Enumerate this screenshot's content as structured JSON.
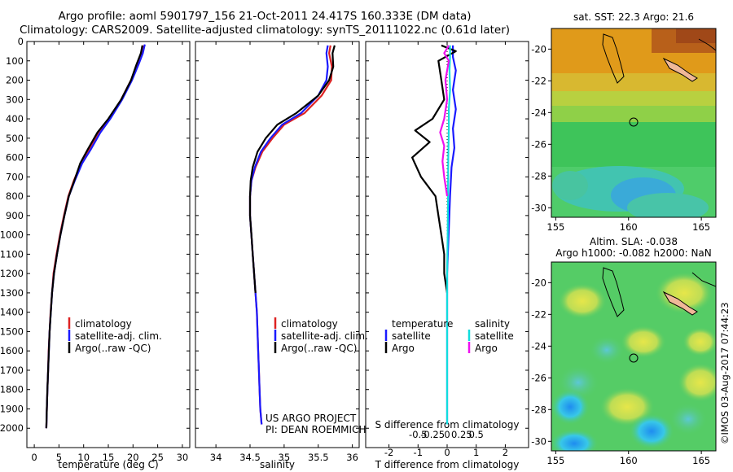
{
  "header": {
    "line1": "Argo profile: aoml 5901797_156 21-Oct-2011 24.417S 160.333E (DM data)",
    "line2": "Climatology: CARS2009. Satellite-adjusted climatology: synTS_20111022.nc (0.61d later)"
  },
  "colors": {
    "climatology": "#dd2222",
    "satellite": "#1a1aff",
    "argo": "#000000",
    "argo_salinity_diff": "#ee11ee",
    "satellite_salinity_diff": "#11dddd"
  },
  "legend": {
    "climatology": "climatology",
    "satellite_adj": "satellite-adj. clim.",
    "argo": "Argo(..raw -QC)",
    "temperature": "temperature",
    "salinity": "salinity",
    "satellite": "satellite",
    "argo_short": "Argo"
  },
  "project": {
    "line1": "US ARGO PROJECT",
    "line2": "PI: DEAN ROEMMICH"
  },
  "side": {
    "sst_title": "sat. SST: 22.3 Argo: 21.6",
    "sla_title1": "Altim. SLA: -0.038",
    "sla_title2": "Argo h1000: -0.082 h2000: NaN",
    "credit": "©IMOS 03-Aug-2017 07:44:23"
  },
  "chart_data": [
    {
      "type": "line",
      "panel": "temperature",
      "xlabel": "temperature (deg C)",
      "ylabel": "",
      "xlim": [
        -1.5,
        31.5
      ],
      "ylim": [
        2100,
        0
      ],
      "xticks": [
        0,
        5,
        10,
        15,
        20,
        25,
        30
      ],
      "yticks": [
        0,
        100,
        200,
        300,
        400,
        500,
        600,
        700,
        800,
        900,
        1000,
        1100,
        1200,
        1300,
        1400,
        1500,
        1600,
        1700,
        1800,
        1900,
        2000
      ],
      "legend_placement": "lower-left",
      "series": [
        {
          "name": "climatology",
          "color_key": "climatology",
          "points": [
            [
              22.1,
              20
            ],
            [
              21.7,
              60
            ],
            [
              20.8,
              120
            ],
            [
              19.6,
              200
            ],
            [
              17.6,
              300
            ],
            [
              15.2,
              400
            ],
            [
              13.0,
              470
            ],
            [
              11.0,
              560
            ],
            [
              9.5,
              630
            ],
            [
              8.0,
              720
            ],
            [
              6.9,
              800
            ],
            [
              6.0,
              900
            ],
            [
              5.2,
              1000
            ],
            [
              4.5,
              1100
            ],
            [
              3.9,
              1200
            ],
            [
              3.6,
              1300
            ],
            [
              3.3,
              1400
            ],
            [
              3.1,
              1500
            ],
            [
              2.9,
              1600
            ],
            [
              2.8,
              1700
            ],
            [
              2.65,
              1800
            ],
            [
              2.55,
              1900
            ],
            [
              2.45,
              2000
            ]
          ]
        },
        {
          "name": "satellite-adj. clim.",
          "color_key": "satellite",
          "points": [
            [
              22.4,
              15
            ],
            [
              22.0,
              60
            ],
            [
              21.1,
              120
            ],
            [
              19.8,
              200
            ],
            [
              17.8,
              300
            ],
            [
              15.4,
              400
            ],
            [
              13.4,
              470
            ],
            [
              11.4,
              560
            ],
            [
              9.7,
              630
            ],
            [
              8.2,
              720
            ],
            [
              7.0,
              800
            ],
            [
              6.1,
              900
            ],
            [
              5.3,
              1000
            ],
            [
              4.6,
              1100
            ],
            [
              4.0,
              1200
            ],
            [
              3.6,
              1300
            ],
            [
              3.35,
              1400
            ],
            [
              3.1,
              1500
            ],
            [
              2.95,
              1600
            ],
            [
              2.8,
              1700
            ],
            [
              2.65,
              1800
            ],
            [
              2.55,
              1900
            ],
            [
              2.45,
              2000
            ]
          ]
        },
        {
          "name": "Argo(..raw -QC)",
          "color_key": "argo",
          "points": [
            [
              21.9,
              20
            ],
            [
              21.6,
              60
            ],
            [
              20.7,
              120
            ],
            [
              19.6,
              200
            ],
            [
              17.6,
              300
            ],
            [
              15.0,
              400
            ],
            [
              12.8,
              470
            ],
            [
              10.8,
              560
            ],
            [
              9.3,
              630
            ],
            [
              8.1,
              720
            ],
            [
              7.0,
              800
            ],
            [
              6.1,
              900
            ],
            [
              5.3,
              1000
            ],
            [
              4.6,
              1100
            ],
            [
              4.0,
              1200
            ],
            [
              3.6,
              1300
            ],
            [
              3.35,
              1400
            ],
            [
              3.1,
              1500
            ],
            [
              2.95,
              1600
            ],
            [
              2.8,
              1700
            ],
            [
              2.65,
              1800
            ],
            [
              2.55,
              1900
            ],
            [
              2.45,
              2000
            ]
          ]
        }
      ]
    },
    {
      "type": "line",
      "panel": "salinity",
      "xlabel": "salinity",
      "ylabel": "",
      "xlim": [
        33.7,
        36.1
      ],
      "ylim": [
        2100,
        0
      ],
      "xticks": [
        34,
        34.5,
        35,
        35.5,
        36
      ],
      "xtick_labels": [
        "34",
        "34.5",
        "35",
        "35.5",
        "36"
      ],
      "legend_placement": "lower-left",
      "series": [
        {
          "name": "climatology",
          "color_key": "climatology",
          "points": [
            [
              35.68,
              20
            ],
            [
              35.66,
              60
            ],
            [
              35.7,
              130
            ],
            [
              35.69,
              200
            ],
            [
              35.55,
              280
            ],
            [
              35.3,
              370
            ],
            [
              35.0,
              430
            ],
            [
              34.83,
              500
            ],
            [
              34.68,
              570
            ],
            [
              34.58,
              650
            ],
            [
              34.52,
              720
            ],
            [
              34.5,
              800
            ],
            [
              34.5,
              900
            ],
            [
              34.52,
              1000
            ],
            [
              34.54,
              1100
            ],
            [
              34.56,
              1200
            ],
            [
              34.58,
              1300
            ],
            [
              34.6,
              1400
            ],
            [
              34.61,
              1500
            ],
            [
              34.62,
              1600
            ],
            [
              34.63,
              1700
            ],
            [
              34.64,
              1800
            ],
            [
              34.65,
              1900
            ],
            [
              34.67,
              1980
            ]
          ]
        },
        {
          "name": "satellite-adj. clim.",
          "color_key": "satellite",
          "points": [
            [
              35.64,
              20
            ],
            [
              35.62,
              60
            ],
            [
              35.64,
              130
            ],
            [
              35.62,
              200
            ],
            [
              35.5,
              280
            ],
            [
              35.25,
              370
            ],
            [
              34.97,
              430
            ],
            [
              34.8,
              500
            ],
            [
              34.66,
              570
            ],
            [
              34.57,
              650
            ],
            [
              34.52,
              720
            ],
            [
              34.5,
              800
            ],
            [
              34.5,
              900
            ],
            [
              34.52,
              1000
            ],
            [
              34.54,
              1100
            ],
            [
              34.56,
              1200
            ],
            [
              34.58,
              1300
            ],
            [
              34.6,
              1400
            ],
            [
              34.61,
              1500
            ],
            [
              34.62,
              1600
            ],
            [
              34.63,
              1700
            ],
            [
              34.64,
              1800
            ],
            [
              34.65,
              1900
            ],
            [
              34.67,
              1980
            ]
          ]
        },
        {
          "name": "Argo(..raw -QC)",
          "color_key": "argo",
          "points": [
            [
              35.74,
              20
            ],
            [
              35.71,
              60
            ],
            [
              35.72,
              130
            ],
            [
              35.66,
              200
            ],
            [
              35.5,
              280
            ],
            [
              35.18,
              370
            ],
            [
              34.9,
              430
            ],
            [
              34.73,
              500
            ],
            [
              34.61,
              570
            ],
            [
              34.54,
              650
            ],
            [
              34.51,
              720
            ],
            [
              34.5,
              800
            ],
            [
              34.5,
              900
            ],
            [
              34.52,
              1000
            ],
            [
              34.54,
              1100
            ],
            [
              34.56,
              1200
            ],
            [
              34.58,
              1300
            ]
          ]
        }
      ]
    },
    {
      "type": "line",
      "panel": "difference",
      "xlabel": "T difference from climatology",
      "xlabel_top": "S difference from climatology",
      "ylabel": "",
      "xlim": [
        -2.8,
        2.8
      ],
      "ylim": [
        2100,
        0
      ],
      "xticks_T": [
        -2,
        -1,
        0,
        1,
        2
      ],
      "xticks_S": [
        -0.5,
        -0.25,
        0,
        0.25,
        0.5
      ],
      "xticks_S_labels": [
        "-0.5",
        "-0.25",
        "0",
        "0.25",
        "0.5"
      ],
      "s_scale_note": "",
      "legend_placement": "lower-center",
      "series": [
        {
          "name": "temperature satellite",
          "color_key": "satellite",
          "var": "T",
          "points": [
            [
              0.2,
              20
            ],
            [
              0.2,
              80
            ],
            [
              0.3,
              150
            ],
            [
              0.2,
              250
            ],
            [
              0.3,
              350
            ],
            [
              0.2,
              450
            ],
            [
              0.25,
              550
            ],
            [
              0.15,
              650
            ],
            [
              0.1,
              800
            ],
            [
              0.05,
              1000
            ],
            [
              0.0,
              1200
            ],
            [
              0.0,
              1500
            ],
            [
              0.0,
              1800
            ],
            [
              0.0,
              1980
            ]
          ]
        },
        {
          "name": "temperature Argo",
          "color_key": "argo",
          "var": "T",
          "points": [
            [
              -0.2,
              20
            ],
            [
              0.3,
              50
            ],
            [
              -0.3,
              100
            ],
            [
              -0.2,
              200
            ],
            [
              -0.1,
              300
            ],
            [
              -0.5,
              400
            ],
            [
              -1.1,
              460
            ],
            [
              -0.6,
              520
            ],
            [
              -1.2,
              600
            ],
            [
              -0.9,
              700
            ],
            [
              -0.4,
              800
            ],
            [
              -0.3,
              900
            ],
            [
              -0.2,
              1000
            ],
            [
              -0.1,
              1100
            ],
            [
              -0.1,
              1200
            ],
            [
              0.0,
              1300
            ]
          ]
        },
        {
          "name": "salinity satellite",
          "color_key": "satellite_salinity_diff",
          "var": "S",
          "points": [
            [
              0.05,
              20
            ],
            [
              0.05,
              80
            ],
            [
              0.04,
              150
            ],
            [
              0.05,
              250
            ],
            [
              0.03,
              350
            ],
            [
              0.03,
              450
            ],
            [
              0.02,
              600
            ],
            [
              0.015,
              800
            ],
            [
              0.01,
              1000
            ],
            [
              0.0,
              1200
            ],
            [
              0.0,
              1500
            ],
            [
              0.0,
              1800
            ],
            [
              0.0,
              1980
            ]
          ]
        },
        {
          "name": "salinity Argo",
          "color_key": "argo_salinity_diff",
          "var": "S",
          "points": [
            [
              0.03,
              20
            ],
            [
              -0.05,
              60
            ],
            [
              0.03,
              100
            ],
            [
              -0.03,
              200
            ],
            [
              0.0,
              300
            ],
            [
              -0.05,
              400
            ],
            [
              -0.12,
              470
            ],
            [
              -0.05,
              540
            ],
            [
              -0.08,
              620
            ],
            [
              -0.05,
              700
            ],
            [
              0.0,
              800
            ]
          ]
        }
      ]
    },
    {
      "type": "heatmap",
      "panel": "sst-map",
      "title": "sat. SST: 22.3 Argo: 21.6",
      "xlim": [
        154.7,
        166
      ],
      "ylim": [
        -30.6,
        -18.7
      ],
      "xticks": [
        155,
        160,
        165
      ],
      "yticks": [
        -20,
        -22,
        -24,
        -26,
        -28,
        -30
      ],
      "marker": {
        "lon": 160.333,
        "lat": -24.417
      }
    },
    {
      "type": "heatmap",
      "panel": "sla-map",
      "title": "Altim. SLA: -0.038",
      "xlim": [
        154.7,
        166
      ],
      "ylim": [
        -30.6,
        -18.7
      ],
      "xticks": [
        155,
        160,
        165
      ],
      "yticks": [
        -20,
        -22,
        -24,
        -26,
        -28,
        -30
      ],
      "marker": {
        "lon": 160.333,
        "lat": -24.417
      }
    }
  ]
}
